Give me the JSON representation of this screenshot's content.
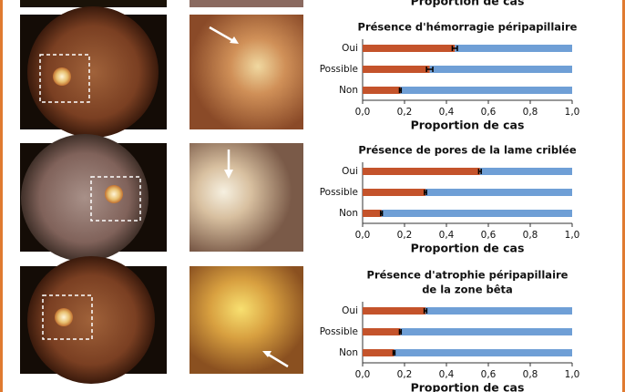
{
  "header_fragment": "Proportion de cas",
  "chart_data": [
    {
      "type": "bar",
      "orientation": "horizontal",
      "title": [
        "Présence d'hémorragie péripapillaire"
      ],
      "categories": [
        "Oui",
        "Possible",
        "Non"
      ],
      "values": [
        0.44,
        0.32,
        0.18
      ],
      "errors": [
        0.012,
        0.015,
        0.004
      ],
      "color": "#c4532b",
      "rest_color": "#6f9fd6",
      "xlabel": "Proportion de cas",
      "xlim": [
        0,
        1
      ],
      "xticks": [
        {
          "value": 0,
          "label": "0,0"
        },
        {
          "value": 0.2,
          "label": "0,2"
        },
        {
          "value": 0.4,
          "label": "0,4"
        },
        {
          "value": 0.6,
          "label": "0,6"
        },
        {
          "value": 0.8,
          "label": "0,8"
        },
        {
          "value": 1,
          "label": "1,0"
        }
      ]
    },
    {
      "type": "bar",
      "orientation": "horizontal",
      "title": [
        "Présence de pores de la lame criblée"
      ],
      "categories": [
        "Oui",
        "Possible",
        "Non"
      ],
      "values": [
        0.56,
        0.3,
        0.09
      ],
      "errors": [
        0.006,
        0.005,
        0.004
      ],
      "color": "#c4532b",
      "rest_color": "#6f9fd6",
      "xlabel": "Proportion de cas",
      "xlim": [
        0,
        1
      ],
      "xticks": [
        {
          "value": 0,
          "label": "0,0"
        },
        {
          "value": 0.2,
          "label": "0,2"
        },
        {
          "value": 0.4,
          "label": "0,4"
        },
        {
          "value": 0.6,
          "label": "0,6"
        },
        {
          "value": 0.8,
          "label": "0,8"
        },
        {
          "value": 1,
          "label": "1,0"
        }
      ]
    },
    {
      "type": "bar",
      "orientation": "horizontal",
      "title": [
        "Présence d'atrophie péripapillaire",
        "de la zone bêta"
      ],
      "categories": [
        "Oui",
        "Possible",
        "Non"
      ],
      "values": [
        0.3,
        0.18,
        0.15
      ],
      "errors": [
        0.006,
        0.004,
        0.004
      ],
      "color": "#c4532b",
      "rest_color": "#6f9fd6",
      "xlabel": "Proportion de cas",
      "xlim": [
        0,
        1
      ],
      "xticks": [
        {
          "value": 0,
          "label": "0,0"
        },
        {
          "value": 0.2,
          "label": "0,2"
        },
        {
          "value": 0.4,
          "label": "0,4"
        },
        {
          "value": 0.6,
          "label": "0,6"
        },
        {
          "value": 0.8,
          "label": "0,8"
        },
        {
          "value": 1,
          "label": "1,0"
        }
      ]
    }
  ]
}
